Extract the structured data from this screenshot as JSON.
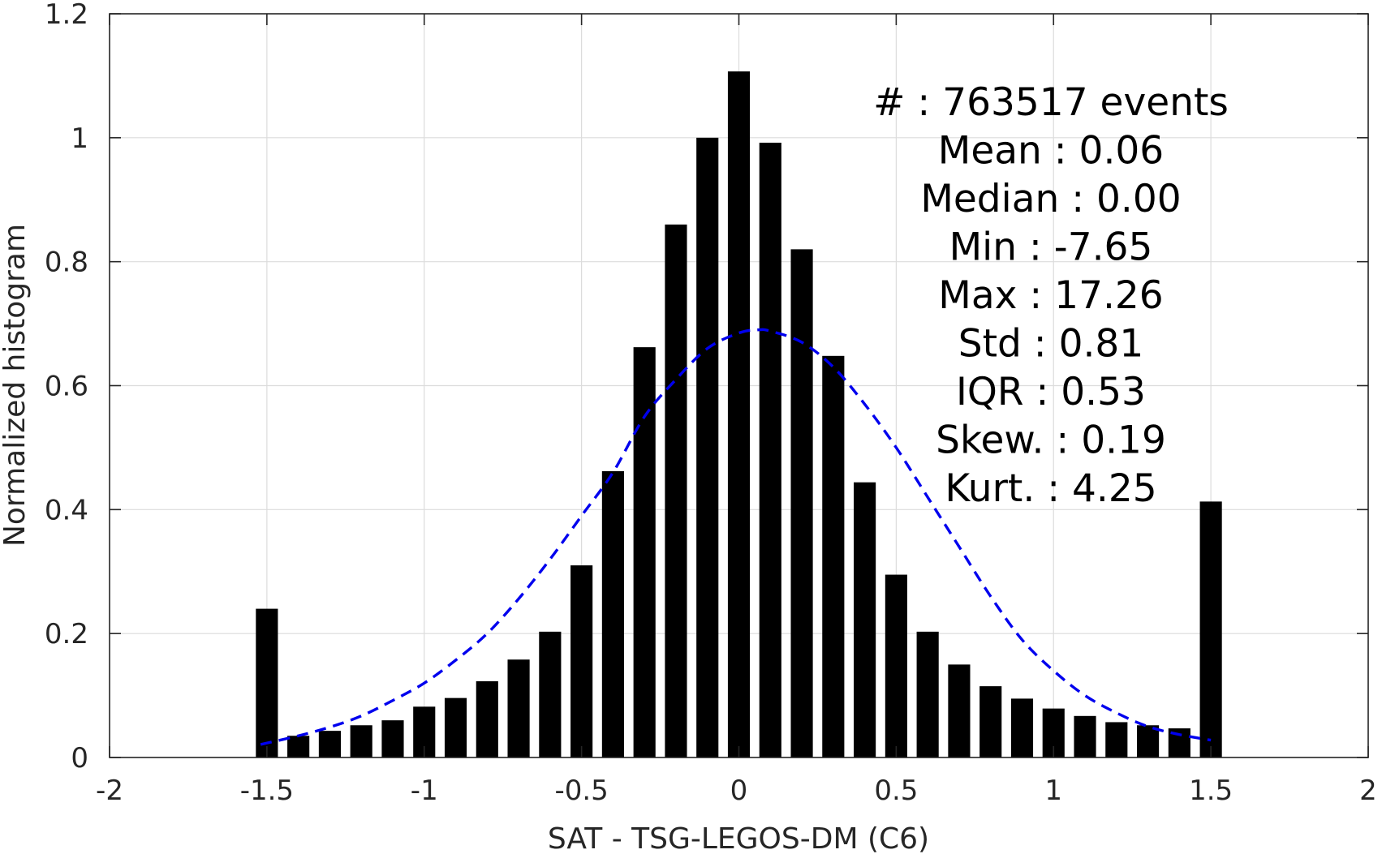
{
  "chart_data": {
    "type": "bar",
    "title": "",
    "xlabel": "SAT - TSG-LEGOS-DM (C6)",
    "ylabel": "Normalized histogram",
    "xlim": [
      -2,
      2
    ],
    "ylim": [
      0,
      1.2
    ],
    "xticks": [
      -2,
      -1.5,
      -1,
      -0.5,
      0,
      0.5,
      1,
      1.5,
      2
    ],
    "xtick_labels": [
      "-2",
      "-1.5",
      "-1",
      "-0.5",
      "0",
      "0.5",
      "1",
      "1.5",
      "2"
    ],
    "yticks": [
      0,
      0.2,
      0.4,
      0.6,
      0.8,
      1,
      1.2
    ],
    "ytick_labels": [
      "0",
      "0.2",
      "0.4",
      "0.6",
      "0.8",
      "1",
      "1.2"
    ],
    "grid": true,
    "series": [
      {
        "type": "bar",
        "color": "#000000",
        "bar_width": 0.07,
        "x": [
          -1.5,
          -1.4,
          -1.3,
          -1.2,
          -1.1,
          -1.0,
          -0.9,
          -0.8,
          -0.7,
          -0.6,
          -0.5,
          -0.4,
          -0.3,
          -0.2,
          -0.1,
          0.0,
          0.1,
          0.2,
          0.3,
          0.4,
          0.5,
          0.6,
          0.7,
          0.8,
          0.9,
          1.0,
          1.1,
          1.2,
          1.3,
          1.4,
          1.5
        ],
        "values": [
          0.24,
          0.035,
          0.043,
          0.052,
          0.06,
          0.082,
          0.096,
          0.123,
          0.158,
          0.203,
          0.31,
          0.462,
          0.662,
          0.86,
          1.0,
          1.107,
          0.992,
          0.82,
          0.648,
          0.444,
          0.295,
          0.203,
          0.15,
          0.115,
          0.095,
          0.079,
          0.067,
          0.057,
          0.052,
          0.047,
          0.413
        ]
      },
      {
        "type": "line",
        "style": "dashed",
        "color": "#0000ee",
        "x": [
          -1.52,
          -1.4,
          -1.3,
          -1.2,
          -1.1,
          -1.0,
          -0.9,
          -0.8,
          -0.7,
          -0.6,
          -0.5,
          -0.4,
          -0.3,
          -0.2,
          -0.1,
          0.0,
          0.06,
          0.1,
          0.2,
          0.3,
          0.4,
          0.5,
          0.6,
          0.7,
          0.8,
          0.9,
          1.0,
          1.1,
          1.2,
          1.3,
          1.4,
          1.5
        ],
        "values": [
          0.021,
          0.035,
          0.049,
          0.067,
          0.092,
          0.12,
          0.157,
          0.2,
          0.256,
          0.32,
          0.39,
          0.46,
          0.55,
          0.61,
          0.66,
          0.685,
          0.69,
          0.688,
          0.67,
          0.63,
          0.57,
          0.5,
          0.42,
          0.34,
          0.26,
          0.19,
          0.14,
          0.1,
          0.072,
          0.05,
          0.037,
          0.028
        ]
      }
    ],
    "annotations": [
      "#  : 763517 events",
      "Mean : 0.06",
      "Median : 0.00",
      "Min : -7.65",
      "Max : 17.26",
      "Std : 0.81",
      "IQR : 0.53",
      "Skew. : 0.19",
      "Kurt. : 4.25"
    ]
  }
}
